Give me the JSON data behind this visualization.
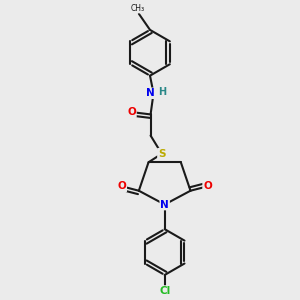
{
  "background_color": "#ebebeb",
  "bond_color": "#1a1a1a",
  "atom_colors": {
    "N": "#0000ee",
    "O": "#ee0000",
    "S": "#bbaa00",
    "Cl": "#22bb22",
    "H": "#2a8888",
    "C": "#1a1a1a"
  },
  "figsize": [
    3.0,
    3.0
  ],
  "dpi": 100
}
